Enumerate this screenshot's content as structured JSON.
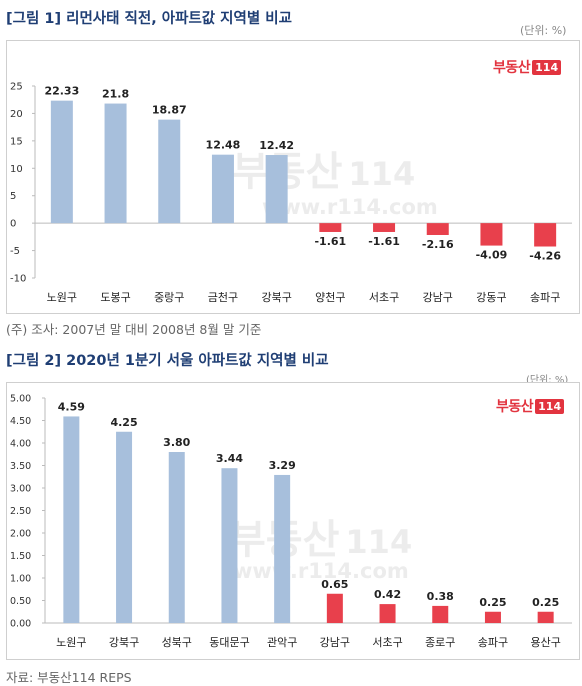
{
  "chart1": {
    "title": "[그림 1] 리먼사태 직전, 아파트값 지역별 비교",
    "unit": "(단위: %)",
    "note": "(주) 조사: 2007년 말 대비 2008년 8월 말 기준",
    "logo": {
      "text": "부동산",
      "num": "114"
    },
    "watermark": {
      "brand": "부동산",
      "num": "114",
      "url": "www.r114.com"
    }
  },
  "chart2": {
    "title": "[그림 2] 2020년 1분기 서울 아파트값 지역별 비교",
    "unit": "(단위: %)",
    "source": "자료: 부동산114 REPS",
    "logo": {
      "text": "부동산",
      "num": "114"
    },
    "watermark": {
      "brand": "부동산",
      "num": "114",
      "url": "www.r114.com"
    }
  },
  "colors": {
    "positive": "#a7bfdc",
    "negative": "#e8404c"
  },
  "chart_data": [
    {
      "type": "bar",
      "title": "[그림 1] 리먼사태 직전, 아파트값 지역별 비교",
      "categories": [
        "노원구",
        "도봉구",
        "중랑구",
        "금천구",
        "강북구",
        "양천구",
        "서초구",
        "강남구",
        "강동구",
        "송파구"
      ],
      "values": [
        22.33,
        21.8,
        18.87,
        12.48,
        12.42,
        -1.61,
        -1.61,
        -2.16,
        -4.09,
        -4.26
      ],
      "value_labels": [
        "22.33",
        "21.8",
        "18.87",
        "12.48",
        "12.42",
        "-1.61",
        "-1.61",
        "-2.16",
        "-4.09",
        "-4.26"
      ],
      "yticks": [
        "25",
        "20",
        "15",
        "10",
        "5",
        "0",
        "-5",
        "-10"
      ],
      "ytick_values": [
        25,
        20,
        15,
        10,
        5,
        0,
        -5,
        -10
      ],
      "ylim": [
        -10,
        25
      ],
      "grid": false
    },
    {
      "type": "bar",
      "title": "[그림 2] 2020년 1분기 서울 아파트값 지역별 비교",
      "categories": [
        "노원구",
        "강북구",
        "성북구",
        "동대문구",
        "관악구",
        "강남구",
        "서초구",
        "종로구",
        "송파구",
        "용산구"
      ],
      "values": [
        4.59,
        4.25,
        3.8,
        3.44,
        3.29,
        0.65,
        0.42,
        0.38,
        0.25,
        0.25
      ],
      "value_labels": [
        "4.59",
        "4.25",
        "3.80",
        "3.44",
        "3.29",
        "0.65",
        "0.42",
        "0.38",
        "0.25",
        "0.25"
      ],
      "yticks": [
        "5.00",
        "4.50",
        "4.00",
        "3.50",
        "3.00",
        "2.50",
        "2.00",
        "1.50",
        "1.00",
        "0.50",
        "0.00"
      ],
      "ytick_values": [
        5,
        4.5,
        4,
        3.5,
        3,
        2.5,
        2,
        1.5,
        1,
        0.5,
        0
      ],
      "ylim": [
        0,
        5
      ],
      "grid": false
    }
  ]
}
